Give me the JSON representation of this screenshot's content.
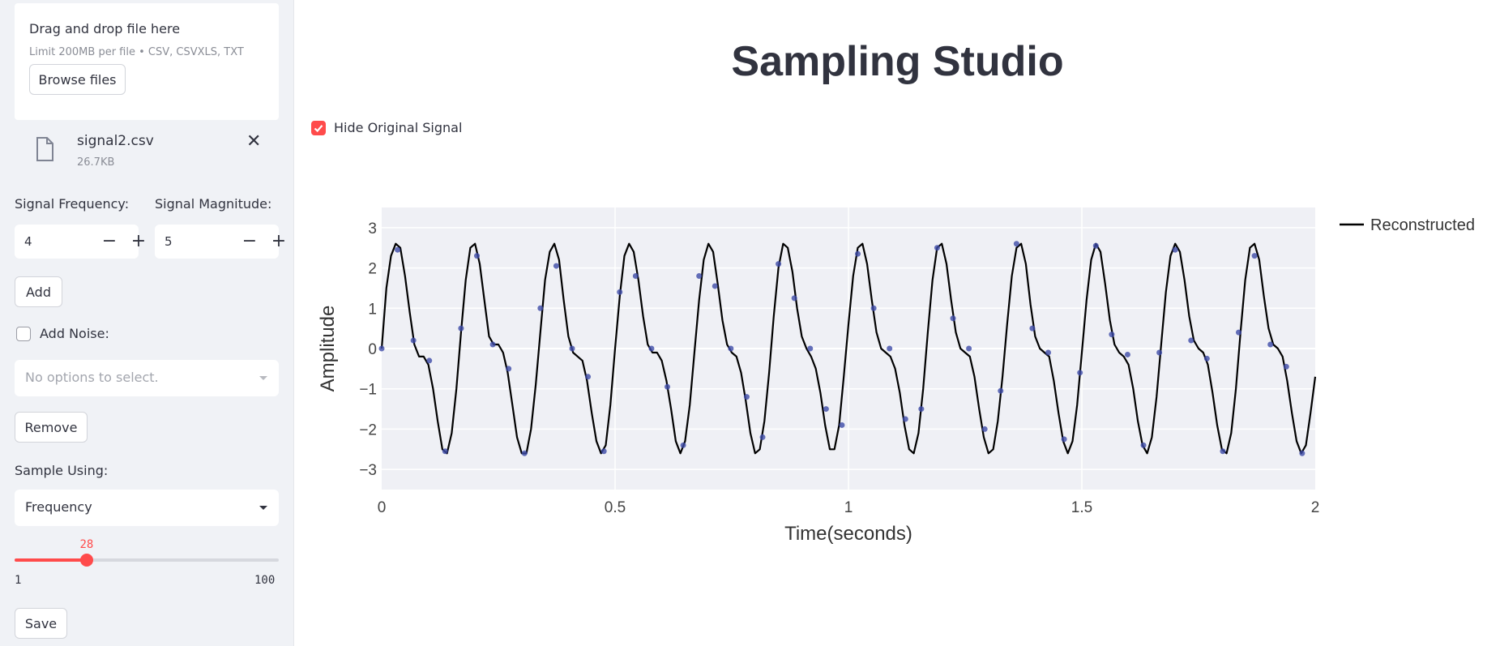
{
  "sidebar": {
    "uploader": {
      "title": "Drag and drop file here",
      "limit": "Limit 200MB per file • CSV, CSVXLS, TXT",
      "browse_label": "Browse files"
    },
    "file": {
      "name": "signal2.csv",
      "size": "26.7KB",
      "close_glyph": "✕",
      "icon": "file-icon"
    },
    "frequency": {
      "label": "Signal Frequency:",
      "value": "4",
      "minus": "−",
      "plus": "+"
    },
    "magnitude": {
      "label": "Signal Magnitude:",
      "value": "5",
      "minus": "−",
      "plus": "+"
    },
    "add_label": "Add",
    "noise": {
      "label": "Add Noise:",
      "checked": false
    },
    "noise_select_placeholder": "No options to select.",
    "remove_label": "Remove",
    "sample_using": {
      "label": "Sample Using:",
      "value": "Frequency"
    },
    "slider": {
      "value": "28",
      "min": "1",
      "max": "100"
    },
    "save_label": "Save"
  },
  "main": {
    "title": "Sampling Studio",
    "hide_original": {
      "label": "Hide Original Signal",
      "checked": true
    }
  },
  "colors": {
    "accent": "#ff4b4b",
    "plot_bg": "#eff0f5",
    "sample_marker": "#3d4ba8",
    "line": "#000000"
  },
  "chart_data": {
    "type": "line",
    "title": "",
    "xlabel": "Time(seconds)",
    "ylabel": "Amplitude",
    "xlim": [
      0,
      2
    ],
    "ylim": [
      -3.5,
      3.5
    ],
    "x_ticks": [
      "0",
      "0.5",
      "1",
      "1.5",
      "2"
    ],
    "y_ticks": [
      "3",
      "2",
      "1",
      "0",
      "−1",
      "−2",
      "−3"
    ],
    "x_tick_values": [
      0,
      0.5,
      1,
      1.5,
      2
    ],
    "y_tick_values": [
      3,
      2,
      1,
      0,
      -1,
      -2,
      -3
    ],
    "grid": true,
    "legend_position": "top-right",
    "series": [
      {
        "name": "Reconstructed",
        "x": [
          0,
          0.01,
          0.02,
          0.03,
          0.04,
          0.05,
          0.06,
          0.07,
          0.08,
          0.09,
          0.1,
          0.11,
          0.12,
          0.13,
          0.14,
          0.15,
          0.16,
          0.17,
          0.18,
          0.19,
          0.2,
          0.21,
          0.22,
          0.23,
          0.24,
          0.25,
          0.26,
          0.27,
          0.28,
          0.29,
          0.3,
          0.31,
          0.32,
          0.33,
          0.34,
          0.35,
          0.36,
          0.37,
          0.38,
          0.39,
          0.4,
          0.41,
          0.42,
          0.43,
          0.44,
          0.45,
          0.46,
          0.47,
          0.48,
          0.49,
          0.5,
          0.51,
          0.52,
          0.53,
          0.54,
          0.55,
          0.56,
          0.57,
          0.58,
          0.59,
          0.6,
          0.61,
          0.62,
          0.63,
          0.64,
          0.65,
          0.66,
          0.67,
          0.68,
          0.69,
          0.7,
          0.71,
          0.72,
          0.73,
          0.74,
          0.75,
          0.76,
          0.77,
          0.78,
          0.79,
          0.8,
          0.81,
          0.82,
          0.83,
          0.84,
          0.85,
          0.86,
          0.87,
          0.88,
          0.89,
          0.9,
          0.91,
          0.92,
          0.93,
          0.94,
          0.95,
          0.96,
          0.97,
          0.98,
          0.99,
          1.0,
          1.01,
          1.02,
          1.03,
          1.04,
          1.05,
          1.06,
          1.07,
          1.08,
          1.09,
          1.1,
          1.11,
          1.12,
          1.13,
          1.14,
          1.15,
          1.16,
          1.17,
          1.18,
          1.19,
          1.2,
          1.21,
          1.22,
          1.23,
          1.24,
          1.25,
          1.26,
          1.27,
          1.28,
          1.29,
          1.3,
          1.31,
          1.32,
          1.33,
          1.34,
          1.35,
          1.36,
          1.37,
          1.38,
          1.39,
          1.4,
          1.41,
          1.42,
          1.43,
          1.44,
          1.45,
          1.46,
          1.47,
          1.48,
          1.49,
          1.5,
          1.51,
          1.52,
          1.53,
          1.54,
          1.55,
          1.56,
          1.57,
          1.58,
          1.59,
          1.6,
          1.61,
          1.62,
          1.63,
          1.64,
          1.65,
          1.66,
          1.67,
          1.68,
          1.69,
          1.7,
          1.71,
          1.72,
          1.73,
          1.74,
          1.75,
          1.76,
          1.77,
          1.78,
          1.79,
          1.8,
          1.81,
          1.82,
          1.83,
          1.84,
          1.85,
          1.86,
          1.87,
          1.88,
          1.89,
          1.9,
          1.91,
          1.92,
          1.93,
          1.94,
          1.95,
          1.96,
          1.97,
          1.98,
          1.99,
          2.0
        ],
        "y": [
          0,
          1.5,
          2.3,
          2.6,
          2.5,
          1.8,
          0.9,
          0.1,
          -0.2,
          -0.2,
          -0.4,
          -1.0,
          -1.8,
          -2.5,
          -2.6,
          -2.1,
          -1.0,
          0.4,
          1.7,
          2.5,
          2.6,
          2.1,
          1.2,
          0.3,
          0.1,
          0.1,
          -0.1,
          -0.6,
          -1.4,
          -2.2,
          -2.6,
          -2.6,
          -2.0,
          -0.9,
          0.4,
          1.7,
          2.4,
          2.6,
          2.2,
          1.2,
          0.3,
          -0.1,
          -0.2,
          -0.3,
          -0.8,
          -1.6,
          -2.3,
          -2.6,
          -2.4,
          -1.4,
          0.0,
          1.3,
          2.3,
          2.6,
          2.4,
          1.7,
          0.8,
          0.1,
          -0.1,
          -0.1,
          -0.3,
          -0.8,
          -1.5,
          -2.3,
          -2.6,
          -2.3,
          -1.4,
          -0.1,
          1.2,
          2.2,
          2.6,
          2.4,
          1.6,
          0.7,
          0.1,
          -0.1,
          -0.2,
          -0.6,
          -1.3,
          -2.1,
          -2.6,
          -2.5,
          -1.8,
          -0.6,
          0.8,
          2.0,
          2.6,
          2.5,
          1.9,
          1.0,
          0.3,
          0.0,
          -0.2,
          -0.5,
          -1.1,
          -1.9,
          -2.5,
          -2.5,
          -1.9,
          -0.7,
          0.6,
          1.8,
          2.5,
          2.6,
          2.1,
          1.2,
          0.4,
          0.0,
          -0.1,
          -0.2,
          -0.5,
          -1.1,
          -1.9,
          -2.5,
          -2.6,
          -2.1,
          -1.0,
          0.4,
          1.7,
          2.5,
          2.6,
          2.1,
          1.2,
          0.4,
          0.0,
          -0.1,
          -0.2,
          -0.7,
          -1.5,
          -2.2,
          -2.6,
          -2.5,
          -1.8,
          -0.7,
          0.6,
          1.8,
          2.5,
          2.6,
          2.1,
          1.1,
          0.3,
          0.0,
          -0.1,
          -0.2,
          -0.8,
          -1.6,
          -2.3,
          -2.6,
          -2.3,
          -1.4,
          -0.1,
          1.2,
          2.2,
          2.6,
          2.4,
          1.6,
          0.7,
          0.1,
          -0.1,
          -0.2,
          -0.4,
          -1.0,
          -1.8,
          -2.4,
          -2.6,
          -2.2,
          -1.2,
          0.1,
          1.4,
          2.3,
          2.6,
          2.4,
          1.7,
          0.8,
          0.2,
          0.0,
          -0.1,
          -0.4,
          -1.1,
          -1.9,
          -2.5,
          -2.6,
          -2.1,
          -1.0,
          0.4,
          1.7,
          2.5,
          2.6,
          2.2,
          1.3,
          0.5,
          0.1,
          0.0,
          -0.2,
          -0.8,
          -1.6,
          -2.3,
          -2.6,
          -2.4,
          -1.6,
          -0.7
        ]
      },
      {
        "name": "",
        "type": "scatter",
        "x": [
          0,
          0.034,
          0.068,
          0.102,
          0.136,
          0.17,
          0.204,
          0.238,
          0.272,
          0.306,
          0.34,
          0.374,
          0.408,
          0.442,
          0.476,
          0.51,
          0.544,
          0.578,
          0.612,
          0.646,
          0.68,
          0.714,
          0.748,
          0.782,
          0.816,
          0.85,
          0.884,
          0.918,
          0.952,
          0.986,
          1.02,
          1.054,
          1.088,
          1.122,
          1.156,
          1.19,
          1.224,
          1.258,
          1.292,
          1.326,
          1.36,
          1.394,
          1.428,
          1.462,
          1.496,
          1.53,
          1.564,
          1.598,
          1.632,
          1.666,
          1.7,
          1.734,
          1.768,
          1.802,
          1.836,
          1.87,
          1.904,
          1.938,
          1.972
        ],
        "y": [
          0,
          2.45,
          0.2,
          -0.3,
          -2.55,
          0.5,
          2.3,
          0.1,
          -0.5,
          -2.6,
          1.0,
          2.05,
          0.0,
          -0.7,
          -2.55,
          1.4,
          1.8,
          0.0,
          -0.95,
          -2.4,
          1.8,
          1.55,
          0.0,
          -1.2,
          -2.2,
          2.1,
          1.25,
          0.0,
          -1.5,
          -1.9,
          2.35,
          1.0,
          0.0,
          -1.75,
          -1.5,
          2.5,
          0.75,
          0.0,
          -2.0,
          -1.05,
          2.6,
          0.5,
          -0.1,
          -2.25,
          -0.6,
          2.55,
          0.35,
          -0.15,
          -2.4,
          -0.1,
          2.45,
          0.2,
          -0.25,
          -2.55,
          0.4,
          2.3,
          0.1,
          -0.45,
          -2.6
        ]
      }
    ]
  }
}
